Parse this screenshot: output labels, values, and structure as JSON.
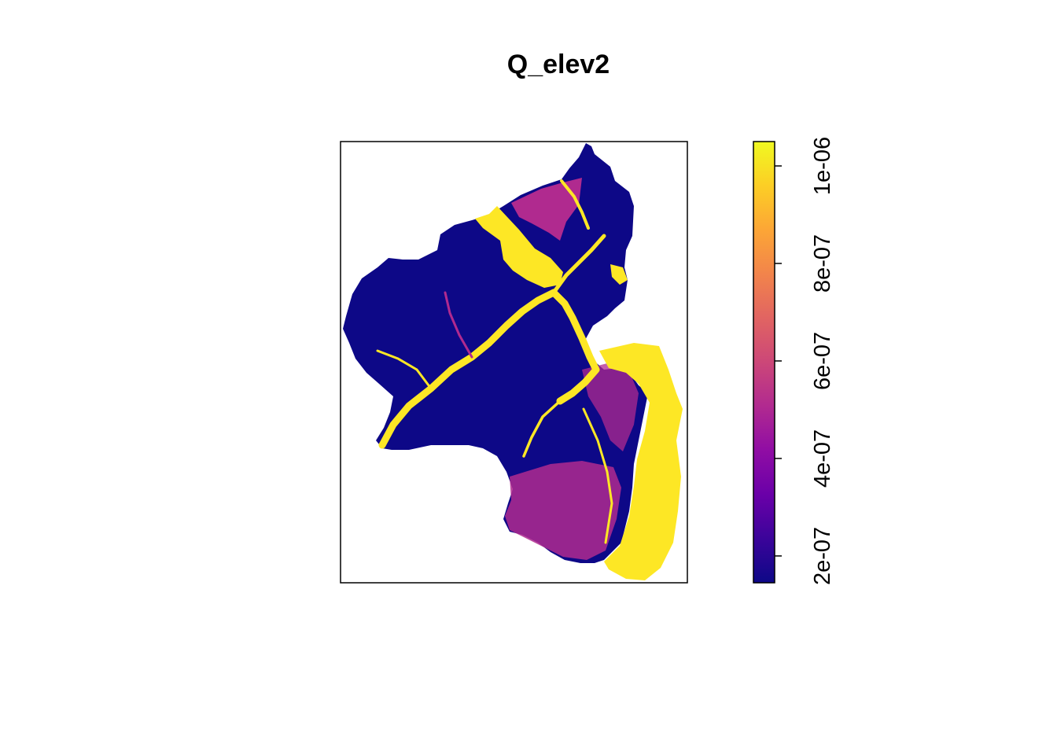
{
  "title": "Q_elev2",
  "legend": {
    "placement": "right",
    "colormap": "plasma",
    "colors": [
      "#0d0887",
      "#3b049a",
      "#6a00a8",
      "#900da4",
      "#b12a90",
      "#cc4778",
      "#e16462",
      "#f2844b",
      "#fca636",
      "#fcce25",
      "#f0f921"
    ],
    "value_range": [
      1.45e-07,
      1.05e-06
    ],
    "ticks": [
      {
        "value": 2e-07,
        "label": "2e-07"
      },
      {
        "value": 4e-07,
        "label": "4e-07"
      },
      {
        "value": 6e-07,
        "label": "6e-07"
      },
      {
        "value": 8e-07,
        "label": "8e-07"
      },
      {
        "value": 1e-06,
        "label": "1e-06"
      }
    ]
  },
  "map": {
    "region_color": "#0d0887",
    "valley_color": "#fde725",
    "mid_color": "#b02a8f",
    "frame_color": "#000000"
  }
}
